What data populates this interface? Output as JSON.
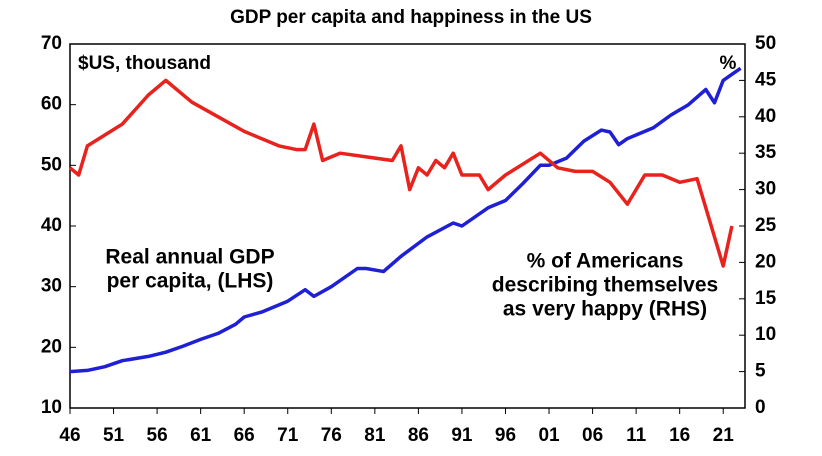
{
  "chart_data": {
    "type": "line",
    "title": "GDP per capita and happiness in the US",
    "y_label": "$US, thousand",
    "y2_label": "%",
    "annotations": [
      {
        "lines": [
          "Real annual GDP",
          "per capita, (LHS)"
        ],
        "color": "#1f1fd6"
      },
      {
        "lines": [
          "% of Americans",
          "describing themselves",
          "as very happy (RHS)"
        ],
        "color": "#e8221c"
      }
    ],
    "xlim": [
      1946,
      2023.5
    ],
    "xticks": [
      {
        "value": 1946,
        "label": "46"
      },
      {
        "value": 1951,
        "label": "51"
      },
      {
        "value": 1956,
        "label": "56"
      },
      {
        "value": 1961,
        "label": "61"
      },
      {
        "value": 1966,
        "label": "66"
      },
      {
        "value": 1971,
        "label": "71"
      },
      {
        "value": 1976,
        "label": "76"
      },
      {
        "value": 1981,
        "label": "81"
      },
      {
        "value": 1986,
        "label": "86"
      },
      {
        "value": 1991,
        "label": "91"
      },
      {
        "value": 1996,
        "label": "96"
      },
      {
        "value": 2001,
        "label": "01"
      },
      {
        "value": 2006,
        "label": "06"
      },
      {
        "value": 2011,
        "label": "11"
      },
      {
        "value": 2016,
        "label": "16"
      },
      {
        "value": 2021,
        "label": "21"
      }
    ],
    "ylim": [
      10,
      70
    ],
    "yticks": [
      10,
      20,
      30,
      40,
      50,
      60,
      70
    ],
    "y2lim": [
      0,
      50
    ],
    "y2ticks": [
      0,
      5,
      10,
      15,
      20,
      25,
      30,
      35,
      40,
      45,
      50
    ],
    "series": [
      {
        "color": "#1f1fd6",
        "axis": "y",
        "x": [
          1946,
          1948,
          1950,
          1952,
          1955,
          1957,
          1959,
          1961,
          1963,
          1965,
          1966,
          1968,
          1971,
          1973,
          1974,
          1976,
          1979,
          1980,
          1982,
          1984,
          1987,
          1990,
          1991,
          1994,
          1996,
          1998,
          2000,
          2001,
          2003,
          2005,
          2007,
          2008,
          2009,
          2010,
          2013,
          2015,
          2017,
          2019,
          2020,
          2021,
          2022,
          2023
        ],
        "values": [
          16,
          16.2,
          16.8,
          17.8,
          18.5,
          19.2,
          20.2,
          21.3,
          22.3,
          23.8,
          25,
          25.8,
          27.6,
          29.5,
          28.4,
          30,
          33,
          33,
          32.5,
          35,
          38.2,
          40.5,
          40,
          43,
          44.2,
          47,
          50,
          50,
          51.2,
          54,
          55.8,
          55.5,
          53.4,
          54.4,
          56.2,
          58.3,
          60,
          62.5,
          60.3,
          64,
          65,
          66
        ]
      },
      {
        "color": "#e8221c",
        "axis": "y2",
        "x": [
          1946,
          1947,
          1948,
          1952,
          1955,
          1957,
          1960,
          1963,
          1966,
          1970,
          1972,
          1973,
          1974,
          1975,
          1977,
          1983,
          1984,
          1985,
          1986,
          1987,
          1988,
          1989,
          1990,
          1991,
          1993,
          1994,
          1996,
          1998,
          2000,
          2002,
          2004,
          2006,
          2008,
          2010,
          2012,
          2014,
          2016,
          2018,
          2021,
          2022
        ],
        "values": [
          33,
          32,
          36,
          39,
          43,
          45,
          42,
          40,
          38,
          36,
          35.5,
          35.5,
          39,
          34,
          35,
          34,
          36,
          30,
          33,
          32,
          34,
          33,
          35,
          32,
          32,
          30,
          32,
          33.5,
          35,
          33,
          32.5,
          32.5,
          31,
          28,
          32,
          32,
          31,
          31.5,
          19.5,
          25
        ]
      }
    ]
  }
}
